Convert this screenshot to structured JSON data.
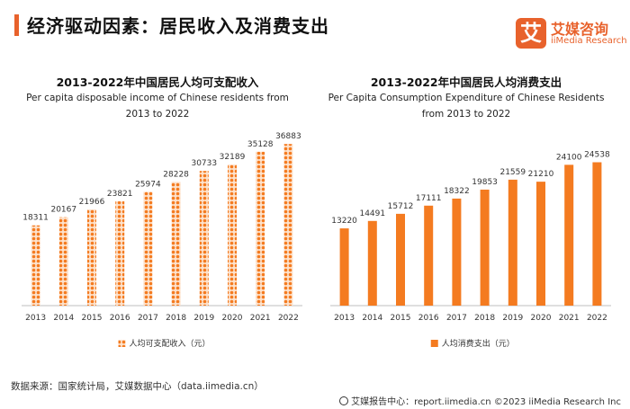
{
  "header": {
    "title": "经济驱动因素：居民收入及消费支出",
    "logo_mark": "艾",
    "logo_cn": "艾媒咨询",
    "logo_en": "iiMedia Research"
  },
  "chart_data": [
    {
      "type": "bar",
      "title": "2013-2022年中国居民人均可支配收入",
      "subtitle": "Per capita disposable income of Chinese residents from 2013 to 2022",
      "categories": [
        "2013",
        "2014",
        "2015",
        "2016",
        "2017",
        "2018",
        "2019",
        "2020",
        "2021",
        "2022"
      ],
      "series": [
        {
          "name": "人均可支配收入（元）",
          "values": [
            18311,
            20167,
            21966,
            23821,
            25974,
            28228,
            30733,
            32189,
            35128,
            36883
          ],
          "color": "#f47b20",
          "pattern": "dotted"
        }
      ],
      "ylim": [
        0,
        40000
      ],
      "legend": "bottom-center",
      "grid": false
    },
    {
      "type": "bar",
      "title": "2013-2022年中国居民人均消费支出",
      "subtitle": "Per Capita Consumption Expenditure of Chinese Residents from 2013 to 2022",
      "categories": [
        "2013",
        "2014",
        "2015",
        "2016",
        "2017",
        "2018",
        "2019",
        "2020",
        "2021",
        "2022"
      ],
      "series": [
        {
          "name": "人均消费支出（元）",
          "values": [
            13220,
            14491,
            15712,
            17111,
            18322,
            19853,
            21559,
            21210,
            24100,
            24538
          ],
          "color": "#f47b20",
          "pattern": "solid"
        }
      ],
      "ylim": [
        0,
        30000
      ],
      "legend": "bottom-center",
      "grid": false
    }
  ],
  "footer": {
    "source": "数据来源：国家统计局，艾媒数据中心（data.iimedia.cn）",
    "right": "艾媒报告中心：report.iimedia.cn  ©2023  iiMedia Research  Inc"
  }
}
